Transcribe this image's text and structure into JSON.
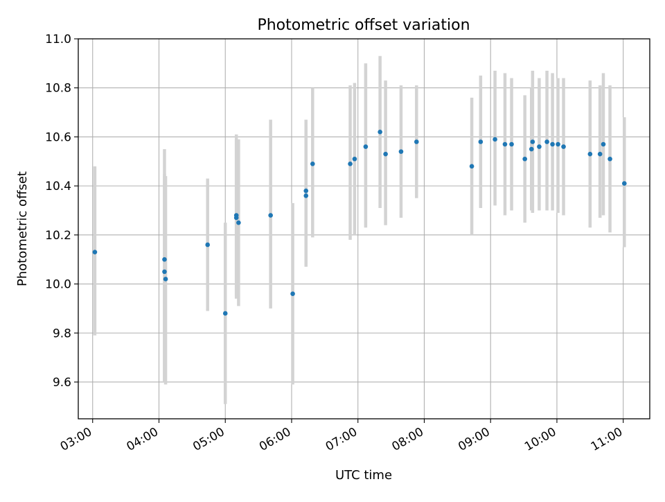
{
  "chart_data": {
    "type": "scatter",
    "title": "Photometric offset variation",
    "xlabel": "UTC time",
    "ylabel": "Photometric offset",
    "x_is_time": true,
    "xlim": [
      "02:47",
      "11:24"
    ],
    "ylim": [
      9.45,
      11.0
    ],
    "x_ticks": [
      "03:00",
      "04:00",
      "05:00",
      "06:00",
      "07:00",
      "08:00",
      "09:00",
      "10:00",
      "11:00"
    ],
    "y_ticks": [
      "9.6",
      "9.8",
      "10.0",
      "10.2",
      "10.4",
      "10.6",
      "10.8",
      "11.0"
    ],
    "grid": true,
    "legend": "none",
    "colors": {
      "points": "#1f77b4",
      "errorbars": "#d3d3d3",
      "grid": "#b0b0b0"
    },
    "points": [
      {
        "x": "03:02",
        "y": 10.13,
        "err_low": 9.79,
        "err_high": 10.48
      },
      {
        "x": "04:05",
        "y": 10.1,
        "err_low": 9.6,
        "err_high": 10.55
      },
      {
        "x": "04:05",
        "y": 10.05,
        "err_low": 9.6,
        "err_high": 10.45
      },
      {
        "x": "04:06",
        "y": 10.02,
        "err_low": 9.59,
        "err_high": 10.44
      },
      {
        "x": "04:44",
        "y": 10.16,
        "err_low": 9.89,
        "err_high": 10.43
      },
      {
        "x": "05:00",
        "y": 9.88,
        "err_low": 9.51,
        "err_high": 10.25
      },
      {
        "x": "05:10",
        "y": 10.28,
        "err_low": 9.94,
        "err_high": 10.61
      },
      {
        "x": "05:10",
        "y": 10.27,
        "err_low": 9.95,
        "err_high": 10.59
      },
      {
        "x": "05:12",
        "y": 10.25,
        "err_low": 9.91,
        "err_high": 10.59
      },
      {
        "x": "05:41",
        "y": 10.28,
        "err_low": 9.9,
        "err_high": 10.67
      },
      {
        "x": "06:01",
        "y": 9.96,
        "err_low": 9.59,
        "err_high": 10.33
      },
      {
        "x": "06:13",
        "y": 10.38,
        "err_low": 10.08,
        "err_high": 10.67
      },
      {
        "x": "06:13",
        "y": 10.36,
        "err_low": 10.07,
        "err_high": 10.64
      },
      {
        "x": "06:19",
        "y": 10.49,
        "err_low": 10.19,
        "err_high": 10.8
      },
      {
        "x": "06:53",
        "y": 10.49,
        "err_low": 10.18,
        "err_high": 10.81
      },
      {
        "x": "06:57",
        "y": 10.51,
        "err_low": 10.2,
        "err_high": 10.82
      },
      {
        "x": "07:07",
        "y": 10.56,
        "err_low": 10.23,
        "err_high": 10.9
      },
      {
        "x": "07:20",
        "y": 10.62,
        "err_low": 10.31,
        "err_high": 10.93
      },
      {
        "x": "07:25",
        "y": 10.53,
        "err_low": 10.24,
        "err_high": 10.83
      },
      {
        "x": "07:39",
        "y": 10.54,
        "err_low": 10.27,
        "err_high": 10.81
      },
      {
        "x": "07:53",
        "y": 10.58,
        "err_low": 10.35,
        "err_high": 10.81
      },
      {
        "x": "08:43",
        "y": 10.48,
        "err_low": 10.2,
        "err_high": 10.76
      },
      {
        "x": "08:51",
        "y": 10.58,
        "err_low": 10.31,
        "err_high": 10.85
      },
      {
        "x": "09:04",
        "y": 10.59,
        "err_low": 10.32,
        "err_high": 10.87
      },
      {
        "x": "09:13",
        "y": 10.57,
        "err_low": 10.28,
        "err_high": 10.86
      },
      {
        "x": "09:19",
        "y": 10.57,
        "err_low": 10.3,
        "err_high": 10.84
      },
      {
        "x": "09:31",
        "y": 10.51,
        "err_low": 10.25,
        "err_high": 10.77
      },
      {
        "x": "09:37",
        "y": 10.55,
        "err_low": 10.3,
        "err_high": 10.8
      },
      {
        "x": "09:38",
        "y": 10.58,
        "err_low": 10.29,
        "err_high": 10.87
      },
      {
        "x": "09:44",
        "y": 10.56,
        "err_low": 10.3,
        "err_high": 10.84
      },
      {
        "x": "09:51",
        "y": 10.58,
        "err_low": 10.3,
        "err_high": 10.87
      },
      {
        "x": "09:56",
        "y": 10.57,
        "err_low": 10.3,
        "err_high": 10.86
      },
      {
        "x": "10:01",
        "y": 10.57,
        "err_low": 10.29,
        "err_high": 10.84
      },
      {
        "x": "10:06",
        "y": 10.56,
        "err_low": 10.28,
        "err_high": 10.84
      },
      {
        "x": "10:30",
        "y": 10.53,
        "err_low": 10.23,
        "err_high": 10.83
      },
      {
        "x": "10:39",
        "y": 10.53,
        "err_low": 10.27,
        "err_high": 10.81
      },
      {
        "x": "10:42",
        "y": 10.57,
        "err_low": 10.28,
        "err_high": 10.86
      },
      {
        "x": "10:48",
        "y": 10.51,
        "err_low": 10.21,
        "err_high": 10.81
      },
      {
        "x": "11:01",
        "y": 10.41,
        "err_low": 10.15,
        "err_high": 10.68
      }
    ]
  }
}
